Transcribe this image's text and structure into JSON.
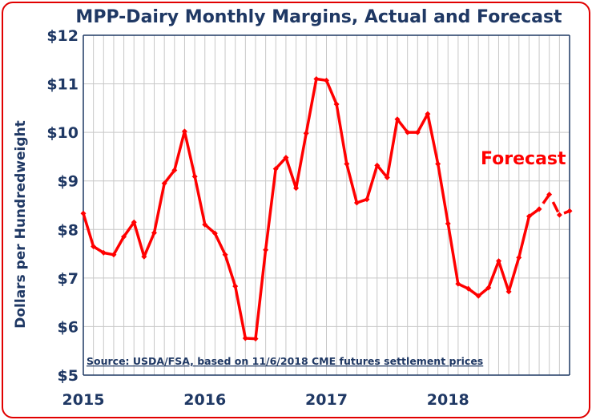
{
  "chart_data": {
    "type": "line",
    "title": "MPP-Dairy Monthly Margins, Actual and Forecast",
    "ylabel": "Dollars per Hundredweight",
    "xlabel": "",
    "ylim": [
      5,
      12
    ],
    "xlim": [
      2015.0,
      2019.0
    ],
    "yticks": [
      5,
      6,
      7,
      8,
      9,
      10,
      11,
      12
    ],
    "ytick_labels": [
      "$5",
      "$6",
      "$7",
      "$8",
      "$9",
      "$10",
      "$11",
      "$12"
    ],
    "xticks": [
      2015,
      2016,
      2017,
      2018
    ],
    "xtick_labels": [
      "2015",
      "2016",
      "2017",
      "2018"
    ],
    "grid": true,
    "line_color": "#ff0000",
    "axis_color": "#1f3864",
    "grid_color": "#c8c8c8",
    "source_note": "Source:  USDA/FSA, based on 11/6/2018 CME futures settlement prices",
    "annotation": "Forecast",
    "series": [
      {
        "style": "solid",
        "x": [
          2015.0,
          2015.083,
          2015.167,
          2015.25,
          2015.333,
          2015.417,
          2015.5,
          2015.583,
          2015.667,
          2015.75,
          2015.833,
          2015.917,
          2016.0,
          2016.083,
          2016.167,
          2016.25,
          2016.333,
          2016.417,
          2016.5,
          2016.583,
          2016.667,
          2016.75,
          2016.833,
          2016.917,
          2017.0,
          2017.083,
          2017.167,
          2017.25,
          2017.333,
          2017.417,
          2017.5,
          2017.583,
          2017.667,
          2017.75,
          2017.833,
          2017.917,
          2018.0,
          2018.083,
          2018.167,
          2018.25,
          2018.333,
          2018.417,
          2018.5,
          2018.583,
          2018.667
        ],
        "values": [
          8.33,
          7.65,
          7.52,
          7.48,
          7.85,
          8.15,
          7.44,
          7.93,
          8.95,
          9.22,
          10.02,
          9.09,
          8.1,
          7.92,
          7.48,
          6.83,
          5.76,
          5.75,
          7.58,
          9.25,
          9.48,
          8.85,
          9.98,
          11.1,
          11.07,
          10.58,
          9.35,
          8.55,
          8.62,
          9.32,
          9.07,
          10.27,
          10.0,
          10.0,
          10.38,
          9.35,
          8.12,
          6.88,
          6.78,
          6.63,
          6.8,
          7.35,
          6.72,
          7.42,
          8.27
        ]
      },
      {
        "style": "dashed",
        "x": [
          2018.667,
          2018.75,
          2018.833,
          2018.917,
          2019.0
        ],
        "values": [
          8.27,
          8.42,
          8.72,
          8.3,
          8.38
        ]
      }
    ]
  }
}
